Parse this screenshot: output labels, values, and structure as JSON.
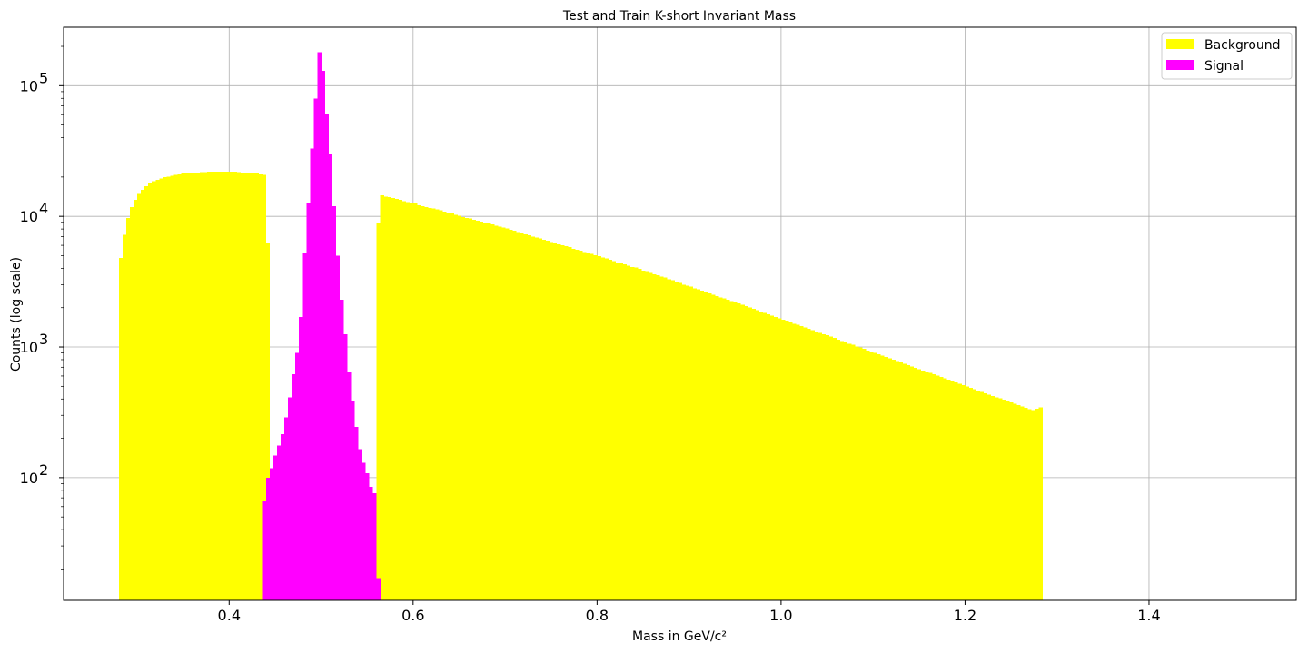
{
  "chart_data": {
    "type": "bar",
    "subtype": "histogram",
    "title": "Test and Train K-short Invariant Mass",
    "xlabel": "Mass in GeV/c²",
    "ylabel": "Counts (log scale)",
    "xlim": [
      0.22,
      1.56
    ],
    "ylim": [
      11.5,
      280000
    ],
    "yscale": "log",
    "grid": true,
    "legend_position": "top-right",
    "x_ticks": [
      0.4,
      0.6,
      0.8,
      1.0,
      1.2,
      1.4
    ],
    "x_tick_labels": [
      "0.4",
      "0.6",
      "0.8",
      "1.0",
      "1.2",
      "1.4"
    ],
    "y_ticks": [
      100,
      1000,
      10000,
      100000
    ],
    "y_tick_base": "10",
    "y_tick_exponents": [
      "2",
      "3",
      "4",
      "5"
    ],
    "bin_width": 0.004,
    "series": [
      {
        "name": "Background",
        "color": "#ffff00",
        "segments": [
          {
            "x_start": 0.28,
            "values": [
              4800,
              7200,
              9700,
              11800,
              13400,
              14800,
              16000,
              17000,
              17800,
              18500,
              19000,
              19500,
              19900,
              20200,
              20500,
              20800,
              21000,
              21200,
              21300,
              21500,
              21600,
              21700,
              21800,
              21800,
              21900,
              21900,
              22000,
              22000,
              22000,
              21900,
              21900,
              21900,
              21800,
              21700,
              21600,
              21400,
              21300,
              21200,
              21000,
              20800,
              6300
            ]
          },
          {
            "x_start": 0.56,
            "values": [
              9000,
              14500,
              14200,
              14000,
              13800,
              13600,
              13400,
              13100,
              12900,
              12700,
              12500,
              12200,
              12000,
              11800,
              11600,
              11500,
              11300,
              11100,
              10900,
              10700,
              10500,
              10300,
              10100,
              9900,
              9750,
              9600,
              9400,
              9250,
              9100,
              8950,
              8800,
              8650,
              8500,
              8350,
              8200,
              8050,
              7900,
              7750,
              7600,
              7450,
              7300,
              7150,
              7000,
              6900,
              6750,
              6600,
              6500,
              6350,
              6250,
              6100,
              6000,
              5900,
              5800,
              5650,
              5550,
              5450,
              5350,
              5250,
              5150,
              5050,
              4950,
              4850,
              4750,
              4650,
              4550,
              4450,
              4400,
              4300,
              4200,
              4100,
              4050,
              3950,
              3850,
              3800,
              3700,
              3600,
              3550,
              3450,
              3400,
              3300,
              3250,
              3150,
              3100,
              3000,
              2950,
              2900,
              2820,
              2760,
              2700,
              2640,
              2580,
              2520,
              2460,
              2400,
              2350,
              2300,
              2250,
              2200,
              2150,
              2100,
              2050,
              2000,
              1960,
              1910,
              1870,
              1830,
              1780,
              1740,
              1700,
              1660,
              1620,
              1590,
              1550,
              1510,
              1480,
              1440,
              1410,
              1380,
              1350,
              1310,
              1280,
              1250,
              1230,
              1200,
              1170,
              1140,
              1110,
              1090,
              1060,
              1040,
              1010,
              990,
              970,
              940,
              920,
              900,
              880,
              860,
              840,
              820,
              800,
              780,
              760,
              745,
              727,
              710,
              694,
              678,
              662,
              647,
              632,
              617,
              603,
              589,
              575,
              562,
              548,
              536,
              523,
              511,
              499,
              487,
              476,
              465,
              454,
              443,
              433,
              423,
              413,
              404,
              394,
              385,
              376,
              367,
              359,
              350,
              342,
              334,
              330,
              337,
              345
            ]
          }
        ]
      },
      {
        "name": "Signal",
        "color": "#ff00ff",
        "segments": [
          {
            "x_start": 0.436,
            "values": [
              66,
              100,
              118,
              148,
              176,
              216,
              290,
              410,
              620,
              900,
              1700,
              5300,
              12500,
              33000,
              80000,
              180000,
              130000,
              60000,
              30000,
              12000,
              5000,
              2300,
              1250,
              640,
              390,
              245,
              165,
              130,
              108,
              85,
              76,
              17
            ]
          }
        ]
      }
    ]
  }
}
